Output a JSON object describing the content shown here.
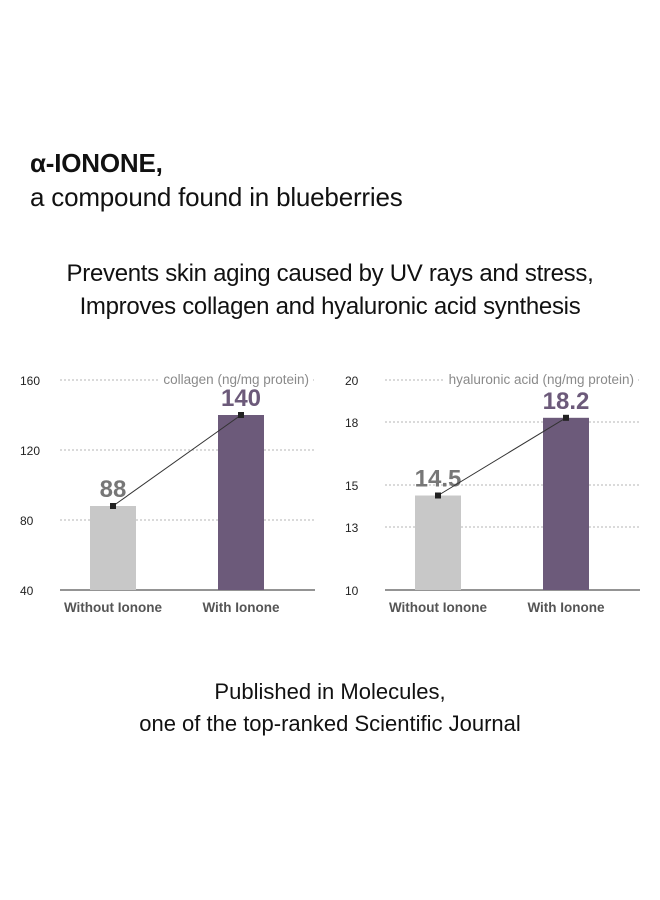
{
  "headline": {
    "line1": "α-IONONE,",
    "line2": "a compound found in blueberries"
  },
  "subhead": {
    "line1": "Prevents skin aging caused by UV rays and stress,",
    "line2": "Improves collagen and hyaluronic acid synthesis"
  },
  "footer": {
    "line1": "Published in Molecules,",
    "line2": "one of the top-ranked Scientific Journal"
  },
  "colors": {
    "without": "#c8c8c8",
    "with": "#6c5a7a",
    "label_without": "#777777",
    "label_with": "#6c5a7a",
    "grid": "#b5b5b5",
    "axis": "#555555",
    "connector": "#333333"
  },
  "chart_data": [
    {
      "type": "bar",
      "title": "",
      "unit_label": "collagen (ng/mg protein)",
      "categories": [
        "Without Ionone",
        "With Ionone"
      ],
      "values": [
        88,
        140
      ],
      "data_labels": [
        "88",
        "140"
      ],
      "ylim": [
        40,
        160
      ],
      "yticks": [
        40,
        80,
        120,
        160
      ],
      "ytick_labels": [
        "40",
        "80",
        "120",
        "160"
      ],
      "grid": true
    },
    {
      "type": "bar",
      "title": "",
      "unit_label": "hyaluronic acid (ng/mg protein)",
      "categories": [
        "Without Ionone",
        "With Ionone"
      ],
      "values": [
        14.5,
        18.2
      ],
      "data_labels": [
        "14.5",
        "18.2"
      ],
      "ylim": [
        10,
        20
      ],
      "yticks": [
        10,
        13,
        15,
        18,
        20
      ],
      "ytick_labels": [
        "10",
        "13",
        "15",
        "18",
        "20"
      ],
      "grid": true
    }
  ]
}
